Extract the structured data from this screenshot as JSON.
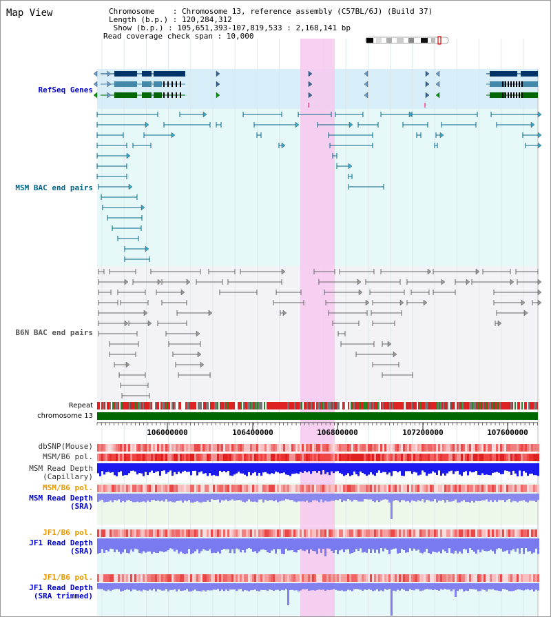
{
  "header": {
    "title": "Map View",
    "chromosome_line": "Chromosome    : Chromosome 13, reference assembly (C57BL/6J) (Build 37)",
    "length_line": "Length (b.p.) : 120,284,312",
    "show_line": " Show (b.p.) : 105,651,393-107,819,533 : 2,168,141 bp",
    "coverage_line": "Read coverage check span : 10,000"
  },
  "tracks": {
    "refseq": "RefSeq Genes",
    "msm_bac": "MSM BAC end pairs",
    "b6n_bac": "B6N BAC end pairs",
    "repeat": "Repeat",
    "chromosome": "chromosome 13",
    "dbsnp": "dbSNP(Mouse)",
    "msm_b6_pol_1": "MSM/B6 pol.",
    "msm_depth_cap_1": "MSM Read Depth",
    "msm_depth_cap_2": "(Capillary)",
    "msm_b6_pol_2": "MSM/B6 pol.",
    "msm_depth_sra_1": "MSM Read Depth",
    "msm_depth_sra_2": "(SRA)",
    "jf1_b6_pol_1": "JF1/B6 pol.",
    "jf1_depth_sra_1": "JF1 Read Depth",
    "jf1_depth_sra_2": "(SRA)",
    "jf1_b6_pol_2": "JF1/B6 pol.",
    "jf1_depth_trim_1": "JF1 Read Depth",
    "jf1_depth_trim_2": "(SRA trimmed)"
  },
  "axis": {
    "ticks": [
      "106000000",
      "106400000",
      "106800000",
      "107200000",
      "107600000"
    ]
  },
  "colors": {
    "highlight": "#f7c8ee",
    "refseq_bg": "#d8eef9",
    "msm_bg": "#e6f8f8",
    "b6n_bg": "#f3f3f7",
    "chromosome": "#006600",
    "msm_label": "#006688",
    "b6n_label": "#555555",
    "refseq_label": "#0000cc",
    "pol_label_orange": "#e69900",
    "depth_blue": "#0000dd"
  }
}
